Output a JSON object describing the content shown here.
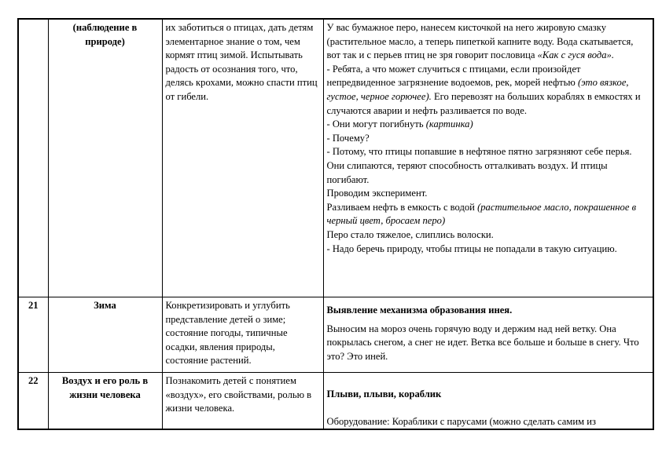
{
  "rows": [
    {
      "number": "",
      "topic": "(наблюдение в природе)",
      "goal": "их заботиться о птицах, дать детям элементарное знание о том, чем кормят птиц зимой. Испытывать радость от осознания того, что, делясь крохами, можно спасти птиц от гибели.",
      "content": {
        "p1": "У вас бумажное перо, нанесем кисточкой на него жировую смазку (растительное масло, а теперь пипеткой капните воду. Вода скатывается, вот так и с перьев птиц не зря говорит пословица ",
        "p1_italic": "«Как с гуся вода».",
        "p2": "- Ребята, а что может случиться с птицами, если произойдет непредвиденное загрязнение водоемов, рек, морей нефтью ",
        "p2_italic": "(это вязкое, густое, черное горючее).",
        "p2_end": " Его перевозят на больших кораблях в емкостях и случаются аварии и нефть разливается по воде.",
        "p3": "- Они могут погибнуть ",
        "p3_italic": "(картинка)",
        "p4": "- Почему?",
        "p5": "- Потому, что птицы попавшие в нефтяное пятно загрязняют себе перья. Они слипаются, теряют способность отталкивать воздух. И птицы погибают.",
        "p6": "Проводим эксперимент.",
        "p7": "Разливаем нефть в емкость с водой ",
        "p7_italic": "(растительное масло, покрашенное в черный цвет, бросаем перо)",
        "p8": "Перо стало тяжелое, слиплись волоски.",
        "p9": "- Надо беречь природу, чтобы птицы не попадали в такую ситуацию."
      }
    },
    {
      "number": "21",
      "topic": "Зима",
      "goal": "Конкретизировать и углубить представление детей о зиме; состояние погоды, типичные осадки, явления природы, состояние растений.",
      "content": {
        "heading": "Выявление механизма образования инея.",
        "text": "Выносим на мороз очень горячую воду и держим над ней ветку. Она покрылась снегом, а снег не идет. Ветка все больше и больше в снегу. Что это? Это иней."
      }
    },
    {
      "number": "22",
      "topic": "Воздух и его роль в жизни человека",
      "goal": "Познакомить детей с понятием «воздух», его свойствами, ролью в жизни человека.",
      "content": {
        "heading": "Плыви, плыви, кораблик",
        "text": "Оборудование: Кораблики с парусами (можно сделать самим из"
      }
    }
  ]
}
